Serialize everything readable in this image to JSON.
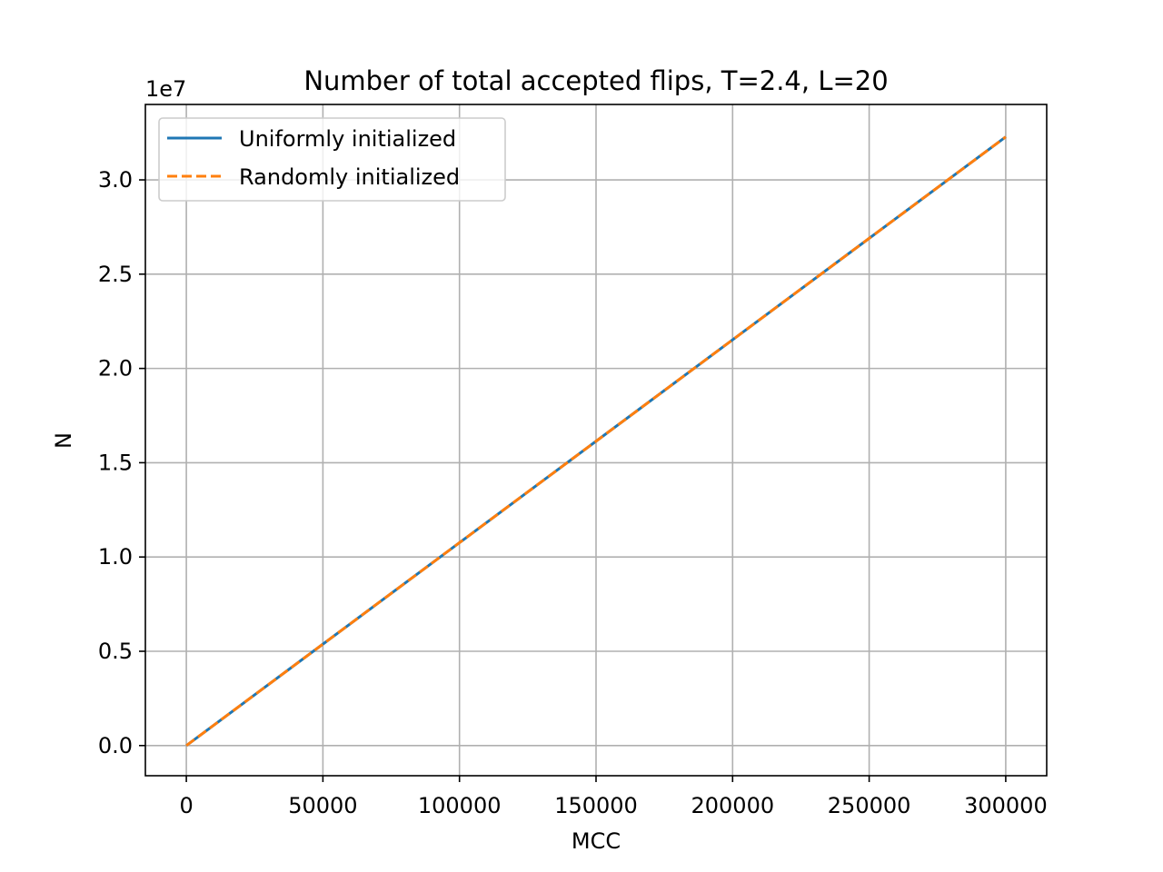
{
  "chart_data": {
    "type": "line",
    "title": "Number of total accepted flips, T=2.4, L=20",
    "xlabel": "MCC",
    "ylabel": "N",
    "y_offset_label": "1e7",
    "xlim": [
      -15000,
      315000
    ],
    "ylim": [
      -0.16,
      3.4
    ],
    "x_ticks": [
      0,
      50000,
      100000,
      150000,
      200000,
      250000,
      300000
    ],
    "x_tick_labels": [
      "0",
      "50000",
      "100000",
      "150000",
      "200000",
      "250000",
      "300000"
    ],
    "y_ticks": [
      0.0,
      0.5,
      1.0,
      1.5,
      2.0,
      2.5,
      3.0
    ],
    "y_tick_labels": [
      "0.0",
      "0.5",
      "1.0",
      "1.5",
      "2.0",
      "2.5",
      "3.0"
    ],
    "grid": true,
    "legend_position": "top-left",
    "series": [
      {
        "name": "Uniformly initialized",
        "color": "#1f77b4",
        "style": "solid",
        "x": [
          0,
          50000,
          100000,
          150000,
          200000,
          250000,
          300000
        ],
        "y": [
          0.0,
          0.538,
          1.076,
          1.614,
          2.152,
          2.69,
          3.228
        ]
      },
      {
        "name": "Randomly initialized",
        "color": "#ff7f0e",
        "style": "dashed",
        "x": [
          0,
          50000,
          100000,
          150000,
          200000,
          250000,
          300000
        ],
        "y": [
          0.0,
          0.538,
          1.076,
          1.614,
          2.152,
          2.69,
          3.228
        ]
      }
    ]
  }
}
